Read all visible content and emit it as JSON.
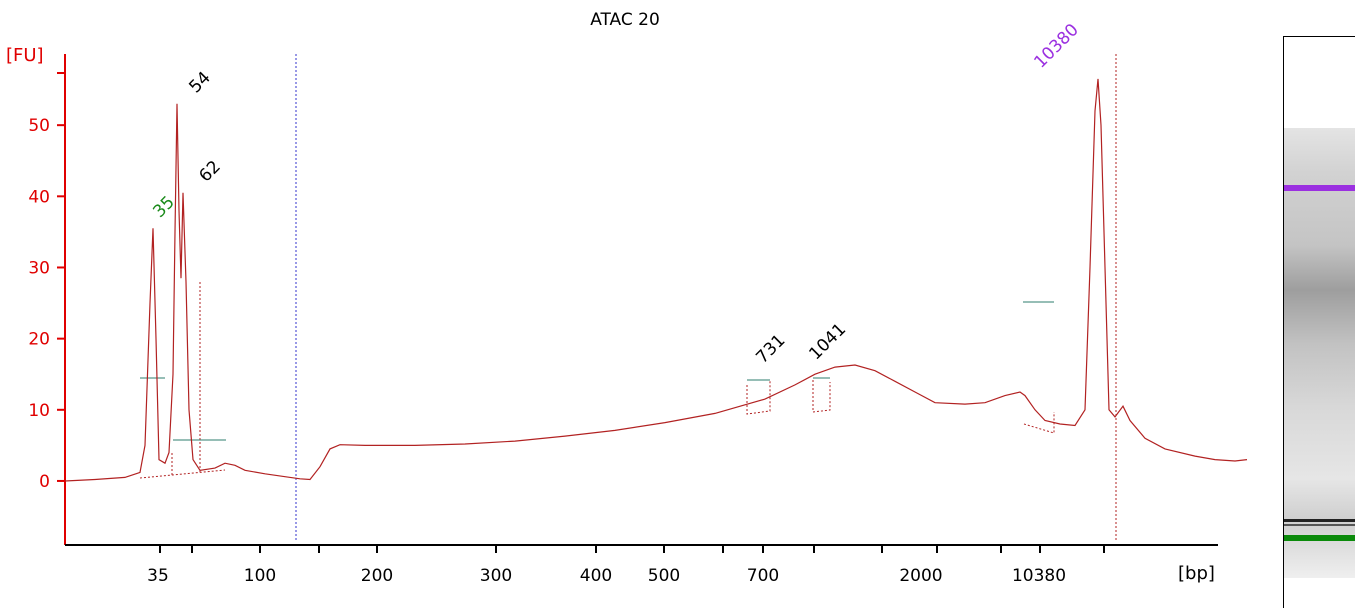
{
  "chart_data": {
    "type": "line",
    "title": "ATAC 20",
    "ylabel": "[FU]",
    "xlabel": "[bp]",
    "ylim": [
      -9,
      60
    ],
    "yticks": [
      0,
      10,
      20,
      30,
      40,
      50
    ],
    "x_tick_labels": [
      "35",
      "100",
      "200",
      "300",
      "400",
      "500",
      "700",
      "2000",
      "10380"
    ],
    "peak_labels": [
      {
        "label": "35",
        "height": 35.5,
        "color": "#1a8a1a"
      },
      {
        "label": "54",
        "height": 53.0,
        "color": "#000000"
      },
      {
        "label": "62",
        "height": 40.5,
        "color": "#000000"
      },
      {
        "label": "731",
        "height": 15.0,
        "color": "#000000"
      },
      {
        "label": "1041",
        "height": 15.5,
        "color": "#000000"
      },
      {
        "label": "10380",
        "height": 56.5,
        "color": "#9b30e0"
      }
    ],
    "series": [
      {
        "color": "#b22222",
        "points": [
          [
            0,
            0
          ],
          [
            30,
            0.2
          ],
          [
            60,
            0.5
          ],
          [
            75,
            1.2
          ],
          [
            80,
            5
          ],
          [
            85,
            25
          ],
          [
            88,
            35.5
          ],
          [
            91,
            20
          ],
          [
            94,
            3
          ],
          [
            100,
            2.5
          ],
          [
            104,
            4
          ],
          [
            108,
            15
          ],
          [
            110,
            35
          ],
          [
            112,
            53
          ],
          [
            114,
            38
          ],
          [
            116,
            28.5
          ],
          [
            118,
            40.5
          ],
          [
            121,
            28
          ],
          [
            124,
            10
          ],
          [
            128,
            3
          ],
          [
            135,
            1.5
          ],
          [
            150,
            1.8
          ],
          [
            160,
            2.5
          ],
          [
            170,
            2.2
          ],
          [
            180,
            1.5
          ],
          [
            200,
            1.0
          ],
          [
            220,
            0.6
          ],
          [
            235,
            0.3
          ],
          [
            245,
            0.2
          ],
          [
            255,
            2
          ],
          [
            265,
            4.5
          ],
          [
            275,
            5.1
          ],
          [
            300,
            5.0
          ],
          [
            350,
            5.0
          ],
          [
            400,
            5.2
          ],
          [
            450,
            5.6
          ],
          [
            500,
            6.3
          ],
          [
            550,
            7.1
          ],
          [
            600,
            8.2
          ],
          [
            650,
            9.5
          ],
          [
            700,
            11.5
          ],
          [
            730,
            13.5
          ],
          [
            750,
            15.0
          ],
          [
            770,
            16.0
          ],
          [
            790,
            16.3
          ],
          [
            810,
            15.5
          ],
          [
            830,
            14.0
          ],
          [
            850,
            12.5
          ],
          [
            870,
            11.0
          ],
          [
            900,
            10.8
          ],
          [
            920,
            11.0
          ],
          [
            940,
            12.0
          ],
          [
            955,
            12.5
          ],
          [
            960,
            12.0
          ],
          [
            970,
            10.0
          ],
          [
            980,
            8.5
          ],
          [
            995,
            8.0
          ],
          [
            1010,
            7.8
          ],
          [
            1020,
            10
          ],
          [
            1025,
            30
          ],
          [
            1030,
            52
          ],
          [
            1033,
            56.5
          ],
          [
            1036,
            50
          ],
          [
            1040,
            30
          ],
          [
            1044,
            10
          ],
          [
            1050,
            9.0
          ],
          [
            1058,
            10.5
          ],
          [
            1065,
            8.5
          ],
          [
            1080,
            6.0
          ],
          [
            1100,
            4.5
          ],
          [
            1130,
            3.5
          ],
          [
            1150,
            3.0
          ],
          [
            1170,
            2.8
          ],
          [
            1182,
            3.0
          ]
        ]
      }
    ],
    "gel_bands": [
      {
        "label": "10380",
        "color": "#9b30e0"
      },
      {
        "label": "35",
        "color": "#0a8a0a"
      }
    ],
    "grid": false,
    "legend": "none"
  }
}
